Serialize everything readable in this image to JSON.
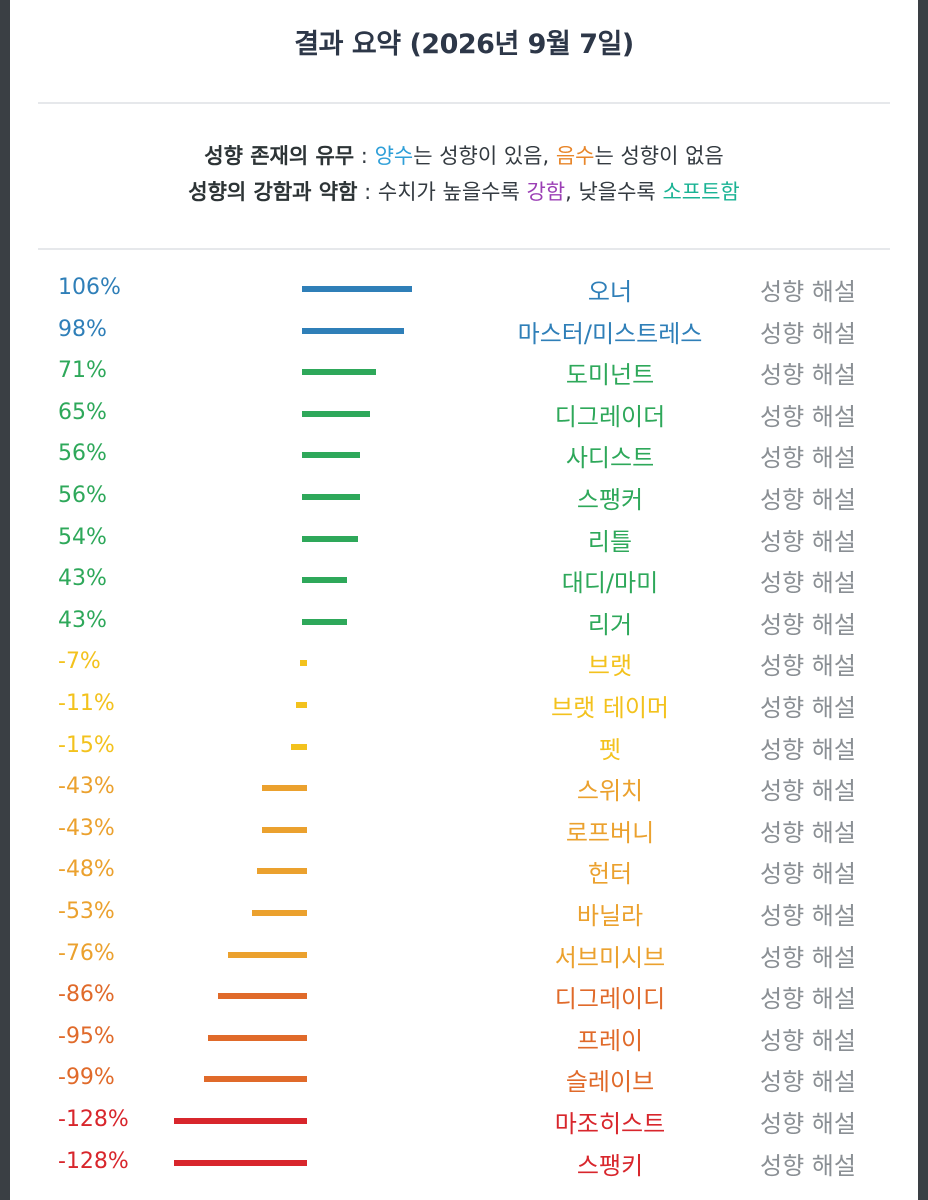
{
  "title": "결과 요약 (2026년 9월 7일)",
  "legend": {
    "line1": {
      "label": "성향 존재의 유무",
      "sep": " : ",
      "pos_word": "양수",
      "pos_rest": "는 성향이 있음, ",
      "neg_word": "음수",
      "neg_rest": "는 성향이 없음"
    },
    "line2": {
      "label": "성향의 강함과 약함",
      "sep": " : 수치가 높을수록 ",
      "strong_word": "강함",
      "mid": ", 낮을수록 ",
      "soft_word": "소프트함"
    }
  },
  "explain_label": "성향 해설",
  "colors": {
    "blue": "#2f7fb8",
    "green": "#2ea85a",
    "yellow": "#f3c21d",
    "orange": "#eba12e",
    "dark_orange": "#e06a2a",
    "red": "#d8262c"
  },
  "chart_data": {
    "type": "bar",
    "orientation": "horizontal",
    "categories": [
      "오너",
      "마스터/미스트레스",
      "도미넌트",
      "디그레이더",
      "사디스트",
      "스팽커",
      "리틀",
      "대디/마미",
      "리거",
      "브랫",
      "브랫 테이머",
      "펫",
      "스위치",
      "로프버니",
      "헌터",
      "바닐라",
      "서브미시브",
      "디그레이디",
      "프레이",
      "슬레이브",
      "마조히스트",
      "스팽키"
    ],
    "values": [
      106,
      98,
      71,
      65,
      56,
      56,
      54,
      43,
      43,
      -7,
      -11,
      -15,
      -43,
      -43,
      -48,
      -53,
      -76,
      -86,
      -95,
      -99,
      -128,
      -128
    ],
    "labels": [
      "106%",
      "98%",
      "71%",
      "65%",
      "56%",
      "56%",
      "54%",
      "43%",
      "43%",
      "-7%",
      "-11%",
      "-15%",
      "-43%",
      "-43%",
      "-48%",
      "-53%",
      "-76%",
      "-86%",
      "-95%",
      "-99%",
      "-128%",
      "-128%"
    ],
    "colors": [
      "blue",
      "blue",
      "green",
      "green",
      "green",
      "green",
      "green",
      "green",
      "green",
      "yellow",
      "yellow",
      "yellow",
      "orange",
      "orange",
      "orange",
      "orange",
      "orange",
      "dark_orange",
      "dark_orange",
      "dark_orange",
      "red",
      "red"
    ],
    "unit": "%"
  }
}
